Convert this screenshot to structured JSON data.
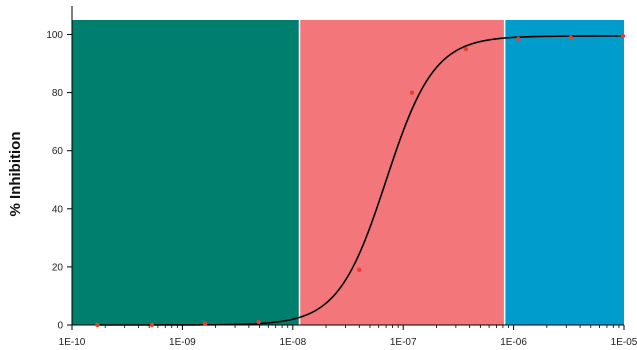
{
  "chart_data": {
    "type": "line",
    "title": "",
    "xlabel": "",
    "ylabel": "% Inhibition",
    "x_scale": "log",
    "xlim": [
      "1E-10",
      "1E-05"
    ],
    "ylim": [
      0,
      105
    ],
    "x_tick_labels": [
      "1E-10",
      "1E-09",
      "1E-08",
      "1E-07",
      "1E-06",
      "1E-05"
    ],
    "y_ticks": [
      0,
      20,
      40,
      60,
      80,
      100
    ],
    "grid": false,
    "legend": "none",
    "background_bands": [
      {
        "from": "1E-10",
        "to": "1.15E-08",
        "color": "#007f6e"
      },
      {
        "from": "1.15E-08",
        "to": "8.3E-07",
        "color": "#f3767b"
      },
      {
        "from": "8.3E-07",
        "to": "1E-05",
        "color": "#009ccc"
      }
    ],
    "series": [
      {
        "type": "scatter",
        "color": "#e8402a",
        "x": [
          "1.7E-10",
          "5.3E-10",
          "1.6E-09",
          "4.9E-09",
          "4.0E-08",
          "1.2E-07",
          "3.7E-07",
          "1.1E-06",
          "3.3E-06",
          "9.8E-06"
        ],
        "y": [
          0,
          0,
          0.5,
          1,
          19,
          80,
          95,
          98.5,
          99,
          99.5
        ]
      },
      {
        "type": "line",
        "color": "#000000",
        "fit": {
          "bottom": 0,
          "top": 99.5,
          "ec50": "7E-08",
          "hill_slope": 2.0
        }
      }
    ]
  }
}
